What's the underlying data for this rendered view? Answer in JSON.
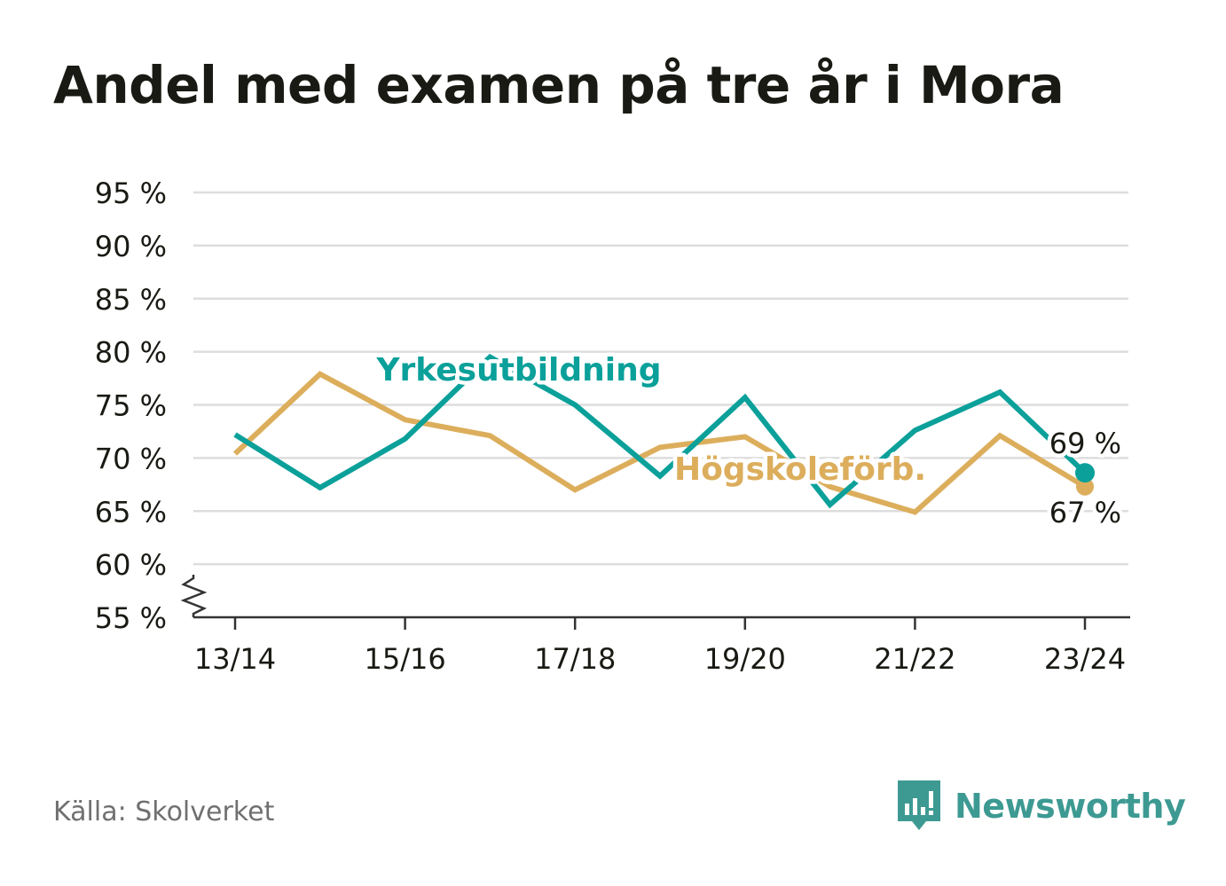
{
  "chart_data": {
    "type": "line",
    "title": "Andel med examen på tre år i Mora",
    "categories": [
      "13/14",
      "14/15",
      "15/16",
      "16/17",
      "17/18",
      "18/19",
      "19/20",
      "20/21",
      "21/22",
      "22/23",
      "23/24"
    ],
    "x_tick_labels": [
      "13/14",
      "15/16",
      "17/18",
      "19/20",
      "21/22",
      "23/24"
    ],
    "y_ticks": [
      "55 %",
      "60 %",
      "65 %",
      "70 %",
      "75 %",
      "80 %",
      "85 %",
      "90 %",
      "95 %"
    ],
    "ylim": [
      55,
      95
    ],
    "y_axis_break": true,
    "grid": true,
    "series": [
      {
        "name": "Yrkesutbildning",
        "color": "#0ba09a",
        "values": [
          72.2,
          67.2,
          71.8,
          79.5,
          75.0,
          68.3,
          75.7,
          65.6,
          72.6,
          76.2,
          68.6
        ],
        "end_label": "69 %"
      },
      {
        "name": "Högskoleförb.",
        "color": "#dcae5c",
        "values": [
          70.4,
          77.9,
          73.6,
          72.1,
          67.0,
          71.0,
          72.0,
          67.3,
          64.9,
          72.1,
          67.3
        ],
        "end_label": "67 %"
      }
    ]
  },
  "footer": {
    "source": "Källa: Skolverket",
    "brand": "Newsworthy"
  },
  "colors": {
    "title": "#1a1a14",
    "grid": "#dddddd",
    "axis": "#333333",
    "brand": "#3d9a93"
  }
}
